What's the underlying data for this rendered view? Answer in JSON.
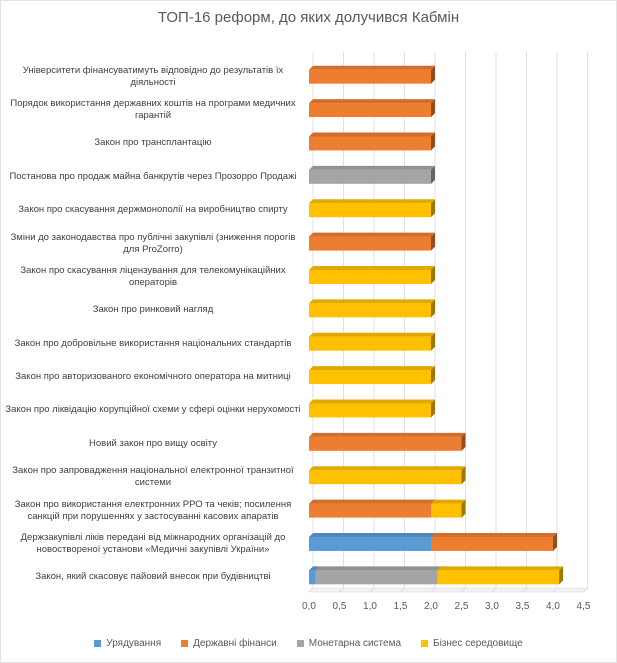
{
  "chart_data": {
    "type": "bar",
    "orientation": "horizontal",
    "stacked": true,
    "title": "ТОП-16 реформ, до яких долучився Кабмін",
    "categories": [
      "Університети фінансуватимуть відповідно до результатів їх діяльності",
      "Порядок використання державних коштів на програми медичних гарантій",
      "Закон про трансплантацію",
      "Постанова про продаж майна банкрутів через Прозорро Продажі",
      "Закон про скасування держмонополії на виробництво спирту",
      "Зміни до законодавства про публічні закупівлі (зниження порогів для ProZorro)",
      "Закон про скасування ліцензування для телекомунікаційних операторів",
      "Закон про ринковий нагляд",
      "Закон про добровільне використання національних стандартів",
      "Закон про авторизованого економічного оператора на митниці",
      "Закон про ліквідацію корупційної схеми у сфері оцінки нерухомості",
      "Новий закон про вищу освіту",
      "Закон про запровадження національної електронної транзитної системи",
      "Закон про використання електронних РРО та чеків; посилення санкцій при порушеннях у застосуванні касових апаратів",
      "Держзакупівлі ліків передані від міжнародних організацій до новоствореної установи «Медичні закупівлі України»",
      "Закон, який скасовує пайовий внесок при будівництві"
    ],
    "series": [
      {
        "name": "Урядування",
        "color": "#5b9bd5",
        "values": [
          0,
          0,
          0,
          0,
          0,
          0,
          0,
          0,
          0,
          0,
          0,
          0,
          0,
          0,
          2.0,
          0.1
        ]
      },
      {
        "name": "Державні фінанси",
        "color": "#ed7d31",
        "values": [
          2.0,
          2.0,
          2.0,
          0,
          0,
          2.0,
          0,
          0,
          0,
          0,
          0,
          2.5,
          0,
          2.0,
          2.0,
          0
        ]
      },
      {
        "name": "Монетарна система",
        "color": "#a5a5a5",
        "values": [
          0,
          0,
          0,
          2.0,
          0,
          0,
          0,
          0,
          0,
          0,
          0,
          0,
          0,
          0,
          0,
          2.0
        ]
      },
      {
        "name": "Бізнес середовище",
        "color": "#ffc000",
        "values": [
          0,
          0,
          0,
          0,
          2.0,
          0,
          2.0,
          2.0,
          2.0,
          2.0,
          2.0,
          0,
          2.5,
          0.5,
          0,
          2.0
        ]
      }
    ],
    "xlim": [
      0,
      4.5
    ],
    "xticks": [
      "0,0",
      "0,5",
      "1,0",
      "1,5",
      "2,0",
      "2,5",
      "3,0",
      "3,5",
      "4,0",
      "4,5"
    ],
    "grid": "vertical",
    "legend_position": "bottom"
  }
}
